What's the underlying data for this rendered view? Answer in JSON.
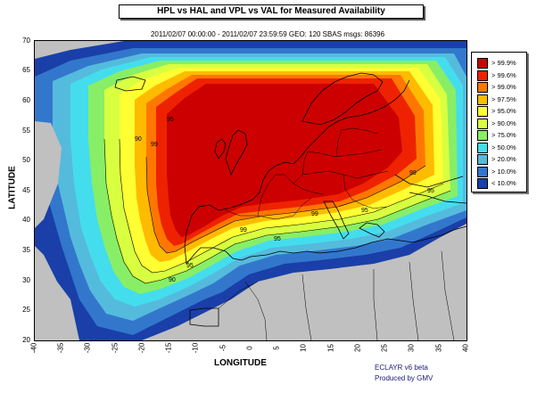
{
  "title": "HPL vs HAL and VPL vs VAL for Measured Availability",
  "subtitle": "2011/02/07 00:00:00 - 2011/02/07 23:59:59  GEO: 120  SBAS msgs: 86396",
  "map": {
    "projection": "lat-lon",
    "lon_range": [
      -40,
      40
    ],
    "lat_range": [
      20,
      70
    ],
    "land_outside_color": "#c0c0c0",
    "y_ticks": [
      "70",
      "65",
      "60",
      "55",
      "50",
      "45",
      "40",
      "35",
      "30",
      "25",
      "20"
    ],
    "x_ticks": [
      "-40",
      "-35",
      "-30",
      "-25",
      "-20",
      "-15",
      "-10",
      "-5",
      "0",
      "5",
      "10",
      "15",
      "20",
      "25",
      "30",
      "35",
      "40"
    ],
    "ylabel": "LATITUDE",
    "xlabel": "LONGITUDE",
    "contour_labels": [
      "95",
      "99",
      "90"
    ]
  },
  "legend": {
    "items": [
      {
        "label": "> 99.9%",
        "color": "#cc0000"
      },
      {
        "label": "> 99.6%",
        "color": "#ee2200"
      },
      {
        "label": "> 99.0%",
        "color": "#ff7700"
      },
      {
        "label": "> 97.5%",
        "color": "#ffbb00"
      },
      {
        "label": "> 95.0%",
        "color": "#ffff33"
      },
      {
        "label": "> 90.0%",
        "color": "#d8ff40"
      },
      {
        "label": "> 75.0%",
        "color": "#88ee66"
      },
      {
        "label": "> 50.0%",
        "color": "#44ddee"
      },
      {
        "label": "> 20.0%",
        "color": "#55bbdd"
      },
      {
        "label": "> 10.0%",
        "color": "#3377cc"
      },
      {
        "label": "< 10.0%",
        "color": "#1a3fa8"
      }
    ]
  },
  "credit": {
    "line1": "ECLAYR v6 beta",
    "line2": "Produced by GMV"
  }
}
